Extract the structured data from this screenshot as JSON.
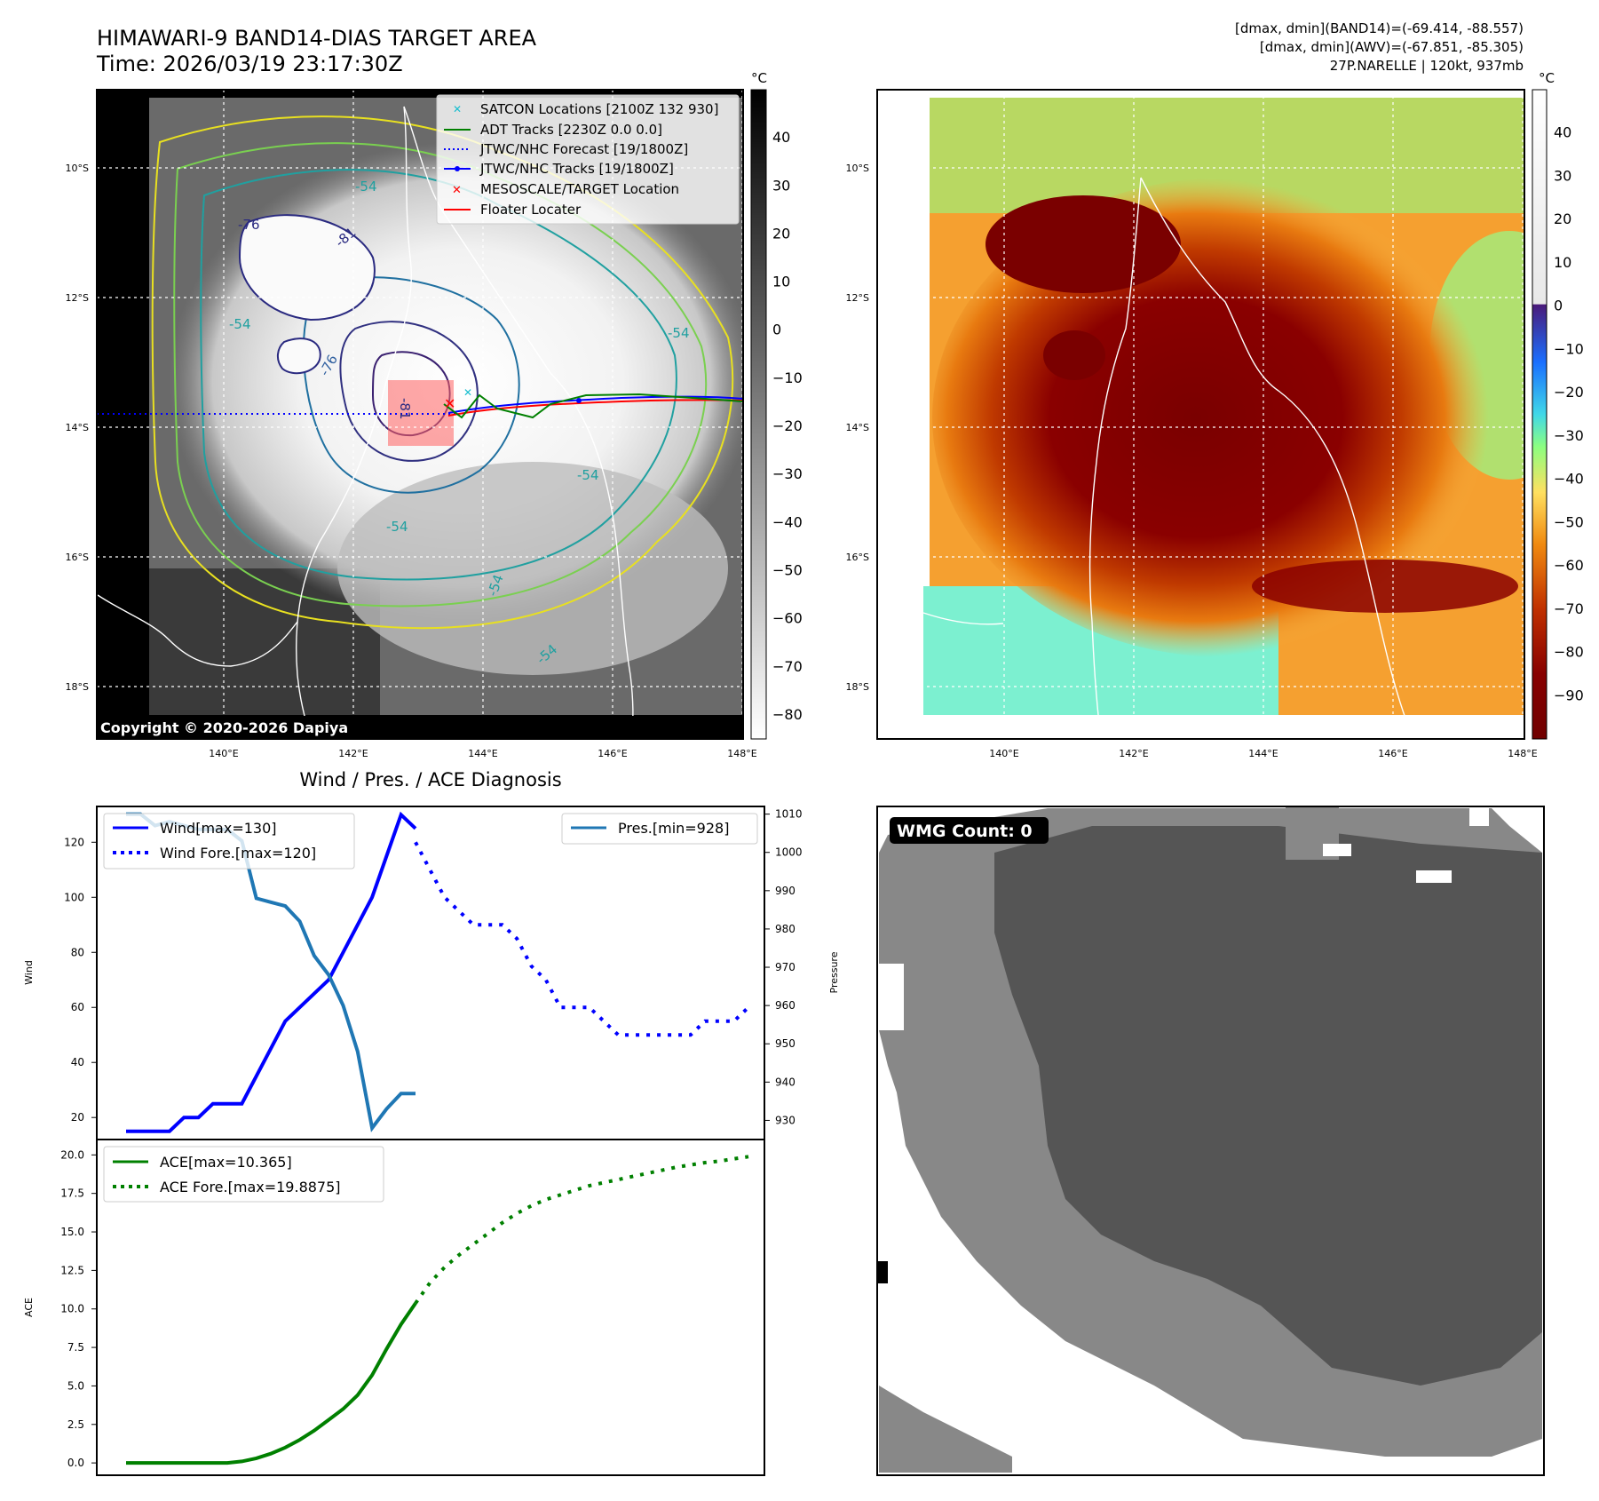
{
  "header": {
    "title": "HIMAWARI-9 BAND14-DIAS TARGET AREA",
    "time": "Time: 2026/03/19 23:17:30Z",
    "stats_line1": "[dmax, dmin](BAND14)=(-69.414, -88.557)",
    "stats_line2": "[dmax, dmin](AWV)=(-67.851, -85.305)",
    "storm_info": "27P.NARELLE | 120kt, 937mb"
  },
  "map": {
    "lat_labels": [
      "10°S",
      "12°S",
      "14°S",
      "16°S",
      "18°S"
    ],
    "lon_labels": [
      "140°E",
      "142°E",
      "144°E",
      "146°E",
      "148°E"
    ],
    "copyright": "Copyright © 2020-2026 Dapiya",
    "contour_labels": [
      "-76",
      "-81",
      "-76",
      "-54",
      "-54",
      "-54",
      "-81",
      "-54",
      "-54",
      "-54",
      "-54"
    ],
    "legend": [
      {
        "label": "SATCON Locations [2100Z 132 930]",
        "marker": "x",
        "color": "#17becf"
      },
      {
        "label": "ADT Tracks [2230Z 0.0 0.0]",
        "marker": "line",
        "color": "#008000"
      },
      {
        "label": "JTWC/NHC Forecast [19/1800Z]",
        "marker": "dotted",
        "color": "#0000ff"
      },
      {
        "label": "JTWC/NHC Tracks [19/1800Z]",
        "marker": "line-dot",
        "color": "#0000ff"
      },
      {
        "label": "MESOSCALE/TARGET Location",
        "marker": "x",
        "color": "#ff0000"
      },
      {
        "label": "Floater Locater",
        "marker": "line",
        "color": "#ff0000"
      }
    ],
    "colorbar1": {
      "unit": "°C",
      "ticks": [
        "40",
        "30",
        "20",
        "10",
        "0",
        "−10",
        "−20",
        "−30",
        "−40",
        "−50",
        "−60",
        "−70",
        "−80"
      ],
      "tick_values": [
        40,
        30,
        20,
        10,
        0,
        -10,
        -20,
        -30,
        -40,
        -50,
        -60,
        -70,
        -80
      ],
      "range": [
        -85,
        50
      ]
    },
    "colorbar2": {
      "unit": "°C",
      "ticks": [
        "40",
        "30",
        "20",
        "10",
        "0",
        "−10",
        "−20",
        "−30",
        "−40",
        "−50",
        "−60",
        "−70",
        "−80",
        "−90"
      ],
      "tick_values": [
        40,
        30,
        20,
        10,
        0,
        -10,
        -20,
        -30,
        -40,
        -50,
        -60,
        -70,
        -80,
        -90
      ],
      "range": [
        -100,
        50
      ]
    }
  },
  "chart_data": [
    {
      "type": "line",
      "title": "Wind / Pres. / ACE Diagnosis",
      "xlabel": "",
      "ylabel": "Wind",
      "ylabel2": "Pressure",
      "ylim": [
        12,
        133
      ],
      "ylim2": [
        925,
        1012
      ],
      "yticks": [
        20,
        40,
        60,
        80,
        100,
        120
      ],
      "yticks2": [
        930,
        940,
        950,
        960,
        970,
        980,
        990,
        1000,
        1010
      ],
      "legend_left": [
        "Wind[max=130]",
        "Wind Fore.[max=120]"
      ],
      "legend_right": [
        "Pres.[min=928]"
      ],
      "x": [
        0,
        1,
        2,
        3,
        4,
        5,
        6,
        7,
        8,
        9,
        10,
        11,
        12,
        13,
        14,
        15,
        16,
        17,
        18,
        19,
        20,
        21,
        22,
        23,
        24,
        25,
        26,
        27,
        28,
        29,
        30,
        31,
        32,
        33,
        34,
        35,
        36,
        37,
        38,
        39,
        40,
        41,
        42,
        43
      ],
      "series": [
        {
          "name": "Wind",
          "style": "solid",
          "color": "#0000ff",
          "x": [
            0,
            1,
            2,
            3,
            4,
            5,
            6,
            7,
            8,
            9,
            10,
            11,
            12,
            13,
            14,
            15,
            16,
            17,
            18,
            19,
            20
          ],
          "values": [
            15,
            15,
            15,
            15,
            20,
            20,
            25,
            25,
            25,
            35,
            45,
            55,
            60,
            65,
            70,
            80,
            90,
            100,
            115,
            130,
            125
          ]
        },
        {
          "name": "Wind Fore.",
          "style": "dotted",
          "color": "#0000ff",
          "x": [
            20,
            21,
            22,
            23,
            24,
            25,
            26,
            27,
            28,
            29,
            30,
            31,
            32,
            33,
            34,
            35,
            36,
            37,
            38,
            39,
            40,
            41,
            42,
            43
          ],
          "values": [
            120,
            110,
            100,
            95,
            90,
            90,
            90,
            85,
            75,
            70,
            60,
            60,
            60,
            55,
            50,
            50,
            50,
            50,
            50,
            50,
            55,
            55,
            55,
            60
          ]
        },
        {
          "name": "Pres.",
          "style": "solid",
          "color": "#1f77b4",
          "axis": "right",
          "x": [
            0,
            1,
            2,
            3,
            4,
            5,
            6,
            7,
            8,
            9,
            10,
            11,
            12,
            13,
            14,
            15,
            16,
            17,
            18,
            19,
            20
          ],
          "values": [
            1010,
            1010,
            1007,
            1008,
            1007,
            1006,
            1006,
            1006,
            1003,
            988,
            987,
            986,
            982,
            973,
            968,
            960,
            948,
            928,
            933,
            937,
            937
          ]
        }
      ]
    },
    {
      "type": "line",
      "ylabel": "ACE",
      "ylim": [
        -0.8,
        21
      ],
      "yticks": [
        "0.0",
        "2.5",
        "5.0",
        "7.5",
        "10.0",
        "12.5",
        "15.0",
        "17.5",
        "20.0"
      ],
      "ytick_values": [
        0,
        2.5,
        5,
        7.5,
        10,
        12.5,
        15,
        17.5,
        20
      ],
      "legend": [
        "ACE[max=10.365]",
        "ACE Fore.[max=19.8875]"
      ],
      "series": [
        {
          "name": "ACE",
          "style": "solid",
          "color": "#008000",
          "x": [
            0,
            1,
            2,
            3,
            4,
            5,
            6,
            7,
            8,
            9,
            10,
            11,
            12,
            13,
            14,
            15,
            16,
            17,
            18,
            19,
            20
          ],
          "values": [
            0,
            0,
            0,
            0,
            0,
            0,
            0,
            0,
            0.1,
            0.3,
            0.6,
            1.0,
            1.5,
            2.1,
            2.8,
            3.5,
            4.4,
            5.7,
            7.4,
            9.0,
            10.365
          ]
        },
        {
          "name": "ACE Fore.",
          "style": "dotted",
          "color": "#008000",
          "x": [
            20,
            21,
            22,
            23,
            24,
            25,
            26,
            27,
            28,
            29,
            30,
            31,
            32,
            33,
            34,
            35,
            36,
            37,
            38,
            39,
            40,
            41,
            42,
            43
          ],
          "values": [
            10.365,
            11.7,
            12.7,
            13.5,
            14.2,
            14.9,
            15.6,
            16.2,
            16.7,
            17.1,
            17.4,
            17.7,
            18.0,
            18.2,
            18.4,
            18.6,
            18.8,
            19.0,
            19.2,
            19.35,
            19.5,
            19.6,
            19.75,
            19.8875
          ]
        }
      ]
    }
  ],
  "wmg": {
    "label": "WMG Count: 0"
  }
}
